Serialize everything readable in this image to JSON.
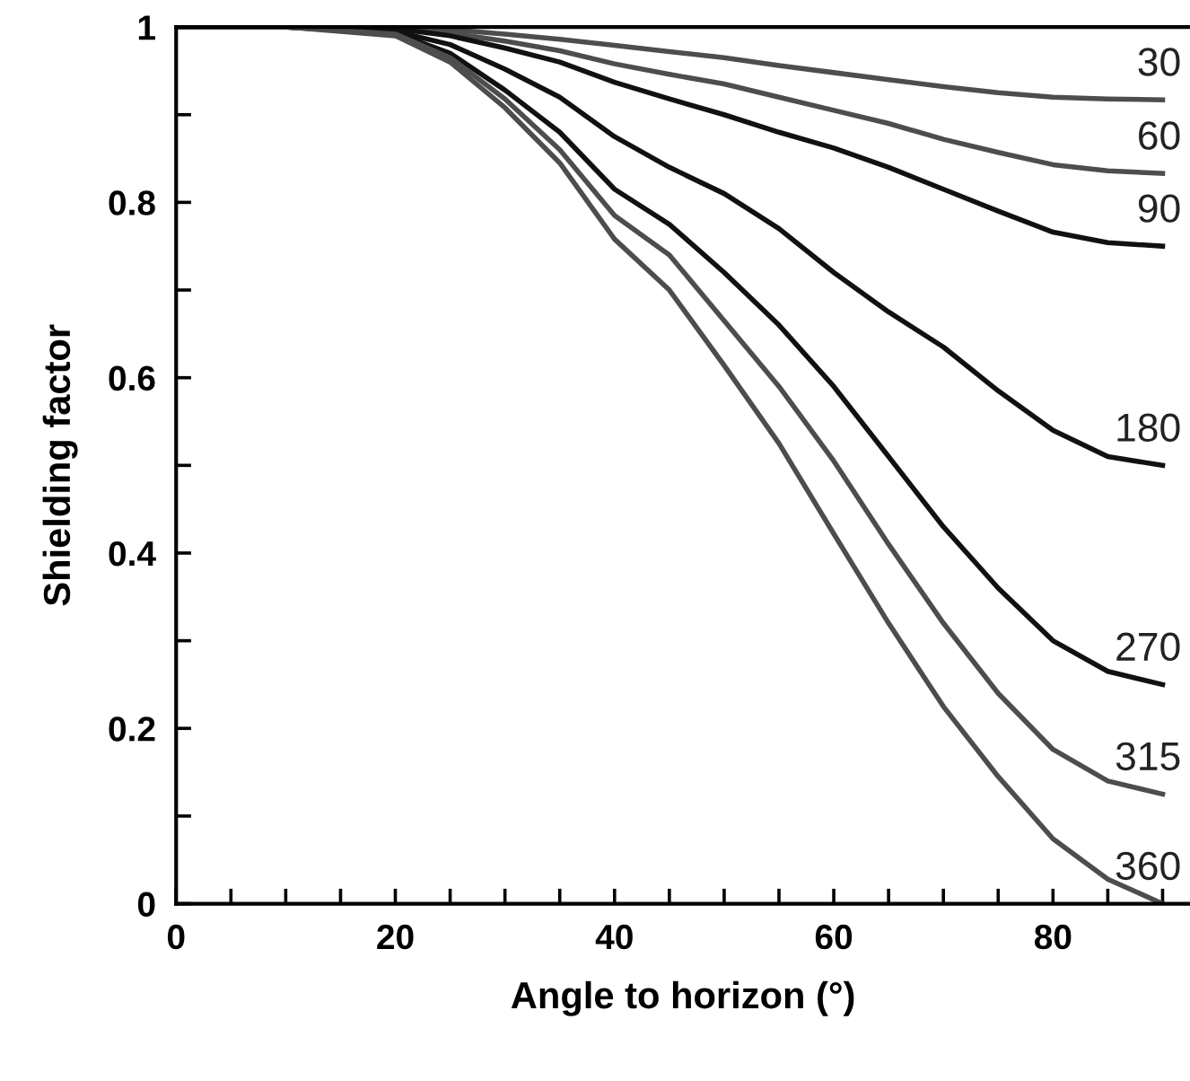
{
  "chart_data": {
    "type": "line",
    "xlabel": "Angle to horizon (°)",
    "ylabel": "Shielding factor",
    "x": [
      0,
      10,
      20,
      25,
      30,
      35,
      40,
      45,
      50,
      55,
      60,
      65,
      70,
      75,
      80,
      85,
      90
    ],
    "series": [
      {
        "name": "30",
        "color": "#4d4d4d",
        "values": [
          1,
          1,
          1,
          0.997,
          0.992,
          0.986,
          0.979,
          0.972,
          0.965,
          0.956,
          0.948,
          0.94,
          0.932,
          0.925,
          0.92,
          0.918,
          0.917
        ]
      },
      {
        "name": "60",
        "color": "#4d4d4d",
        "values": [
          1,
          1,
          0.999,
          0.993,
          0.984,
          0.973,
          0.958,
          0.946,
          0.935,
          0.92,
          0.905,
          0.89,
          0.872,
          0.857,
          0.843,
          0.836,
          0.833
        ]
      },
      {
        "name": "90",
        "color": "#111111",
        "values": [
          1,
          1,
          0.998,
          0.99,
          0.976,
          0.96,
          0.937,
          0.918,
          0.9,
          0.88,
          0.862,
          0.84,
          0.815,
          0.79,
          0.766,
          0.754,
          0.75
        ]
      },
      {
        "name": "180",
        "color": "#111111",
        "values": [
          1,
          1,
          0.995,
          0.98,
          0.952,
          0.92,
          0.875,
          0.84,
          0.81,
          0.77,
          0.72,
          0.675,
          0.635,
          0.585,
          0.54,
          0.51,
          0.5
        ]
      },
      {
        "name": "270",
        "color": "#111111",
        "values": [
          1,
          1,
          0.993,
          0.97,
          0.928,
          0.88,
          0.815,
          0.775,
          0.72,
          0.66,
          0.59,
          0.51,
          0.43,
          0.36,
          0.3,
          0.265,
          0.25
        ]
      },
      {
        "name": "315",
        "color": "#4d4d4d",
        "values": [
          1,
          1,
          0.992,
          0.965,
          0.918,
          0.86,
          0.785,
          0.74,
          0.665,
          0.59,
          0.505,
          0.41,
          0.32,
          0.24,
          0.176,
          0.14,
          0.125
        ]
      },
      {
        "name": "360",
        "color": "#4d4d4d",
        "values": [
          1,
          1,
          0.99,
          0.96,
          0.908,
          0.845,
          0.758,
          0.7,
          0.614,
          0.525,
          0.422,
          0.32,
          0.225,
          0.145,
          0.074,
          0.028,
          0
        ]
      }
    ],
    "xlim": [
      0,
      92.5
    ],
    "ylim": [
      0,
      1
    ],
    "xticks": [
      0,
      {
        "value": 5,
        "label": null
      },
      {
        "value": 10,
        "label": null
      },
      {
        "value": 15,
        "label": null
      },
      20,
      {
        "value": 25,
        "label": null
      },
      {
        "value": 30,
        "label": null
      },
      {
        "value": 35,
        "label": null
      },
      40,
      {
        "value": 45,
        "label": null
      },
      {
        "value": 50,
        "label": null
      },
      {
        "value": 55,
        "label": null
      },
      60,
      {
        "value": 65,
        "label": null
      },
      {
        "value": 70,
        "label": null
      },
      {
        "value": 75,
        "label": null
      },
      80,
      {
        "value": 85,
        "label": null
      },
      {
        "value": 90,
        "label": null
      }
    ],
    "yticks": [
      0,
      {
        "value": 0.1,
        "label": null
      },
      0.2,
      {
        "value": 0.3,
        "label": null
      },
      0.4,
      {
        "value": 0.5,
        "label": null
      },
      0.6,
      {
        "value": 0.7,
        "label": null
      },
      0.8,
      {
        "value": 0.9,
        "label": null
      },
      1
    ],
    "grid": false,
    "legend": false,
    "marker": "none",
    "line_style": "solid"
  }
}
